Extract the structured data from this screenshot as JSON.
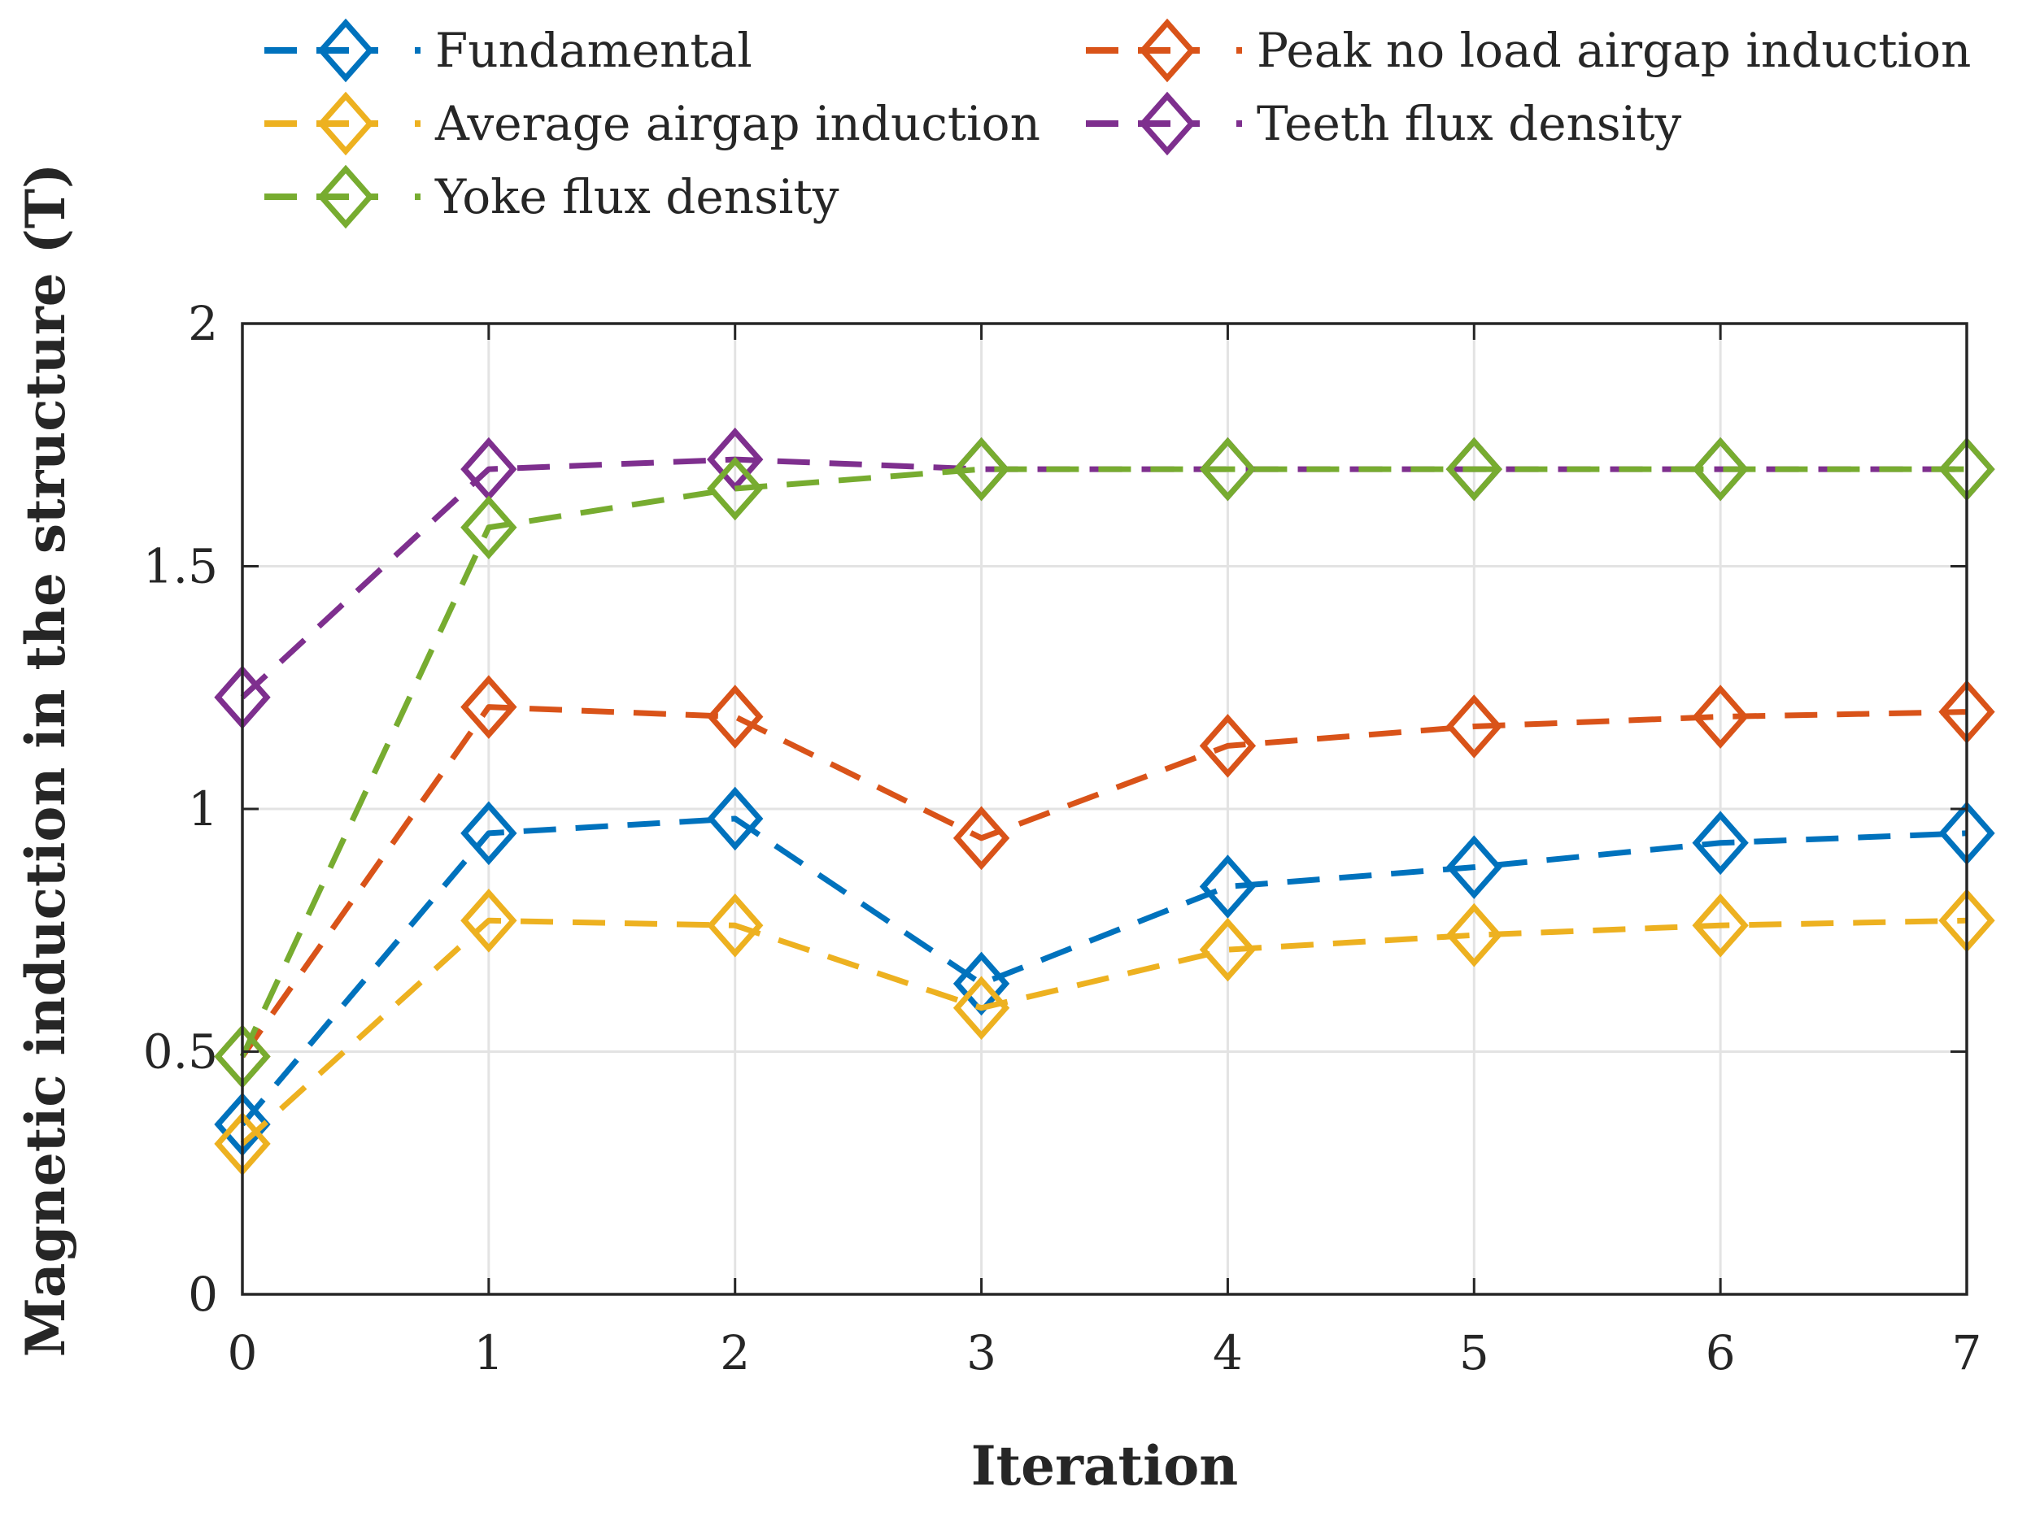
{
  "chart_data": {
    "type": "line",
    "title": "",
    "xlabel": "Iteration",
    "ylabel": "Magnetic induction in the structure (T)",
    "x": [
      0,
      1,
      2,
      3,
      4,
      5,
      6,
      7
    ],
    "xlim": [
      0,
      7
    ],
    "ylim": [
      0,
      2
    ],
    "xticks": [
      "0",
      "1",
      "2",
      "3",
      "4",
      "5",
      "6",
      "7"
    ],
    "yticks": [
      "0",
      "0.5",
      "1",
      "1.5",
      "2"
    ],
    "grid": true,
    "marker": "diamond",
    "linestyle": "dashed",
    "legend_position": "top",
    "series": [
      {
        "name": "Fundamental",
        "color": "#0072BD",
        "values": [
          0.35,
          0.95,
          0.98,
          0.64,
          0.84,
          0.88,
          0.93,
          0.95
        ]
      },
      {
        "name": "Average airgap induction",
        "color": "#EDB120",
        "values": [
          0.31,
          0.77,
          0.76,
          0.59,
          0.71,
          0.74,
          0.76,
          0.77
        ]
      },
      {
        "name": "Yoke flux density",
        "color": "#77AC30",
        "values": [
          0.49,
          1.58,
          1.66,
          1.7,
          1.7,
          1.7,
          1.7,
          1.7
        ]
      },
      {
        "name": "Peak no load airgap induction",
        "color": "#D95319",
        "values": [
          0.49,
          1.21,
          1.19,
          0.94,
          1.13,
          1.17,
          1.19,
          1.2
        ]
      },
      {
        "name": "Teeth flux density",
        "color": "#7E2F8E",
        "values": [
          1.23,
          1.7,
          1.72,
          1.7,
          1.7,
          1.7,
          1.7,
          1.7
        ]
      }
    ]
  }
}
